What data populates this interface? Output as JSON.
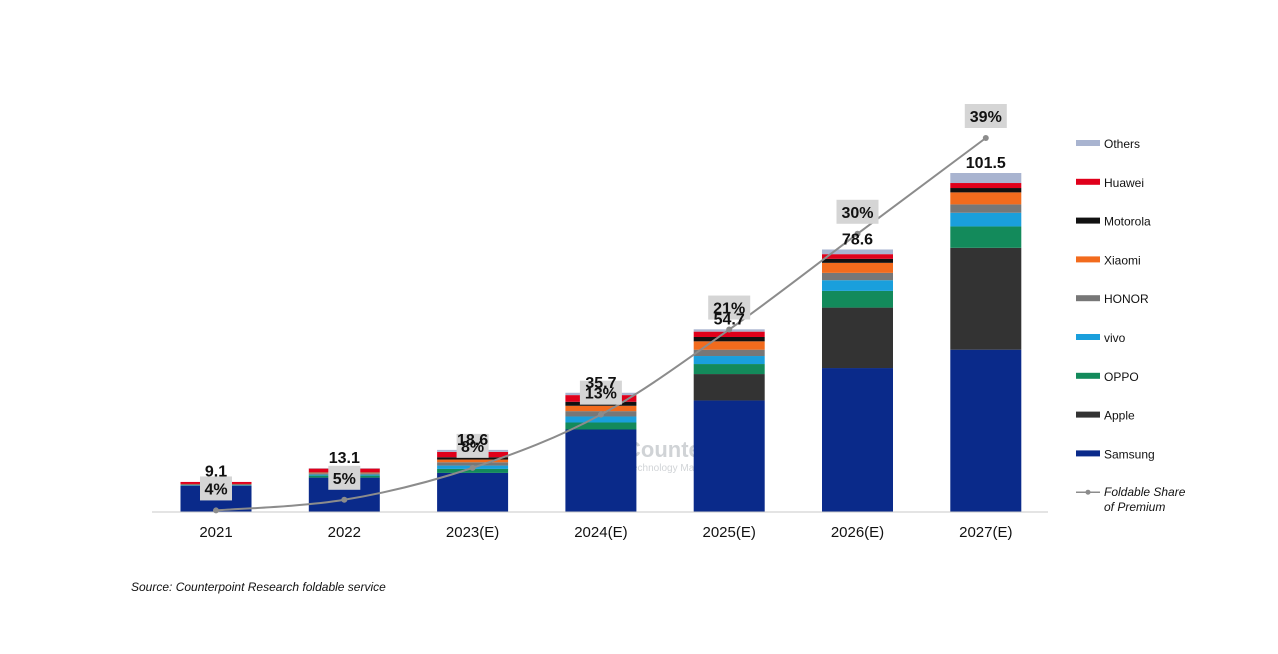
{
  "chart_data": {
    "type": "bar",
    "stacked": true,
    "categories": [
      "2021",
      "2022",
      "2023(E)",
      "2024(E)",
      "2025(E)",
      "2026(E)",
      "2027(E)"
    ],
    "totals": [
      9.1,
      13.1,
      18.6,
      35.7,
      54.7,
      78.6,
      101.5
    ],
    "totals_labels": [
      "9.1",
      "13.1",
      "18.6",
      "35.7",
      "54.7",
      "78.6",
      "101.5"
    ],
    "series": [
      {
        "name": "Samsung",
        "color": "#0a2a8a",
        "values": [
          7.9,
          10.3,
          11.7,
          24.7,
          33.4,
          43.1,
          48.6
        ]
      },
      {
        "name": "Apple",
        "color": "#333333",
        "values": [
          0,
          0,
          0,
          0,
          7.9,
          18.1,
          30.5
        ]
      },
      {
        "name": "OPPO",
        "color": "#138a5b",
        "values": [
          0.1,
          0.6,
          1.2,
          2.1,
          3.0,
          5.0,
          6.4
        ]
      },
      {
        "name": "vivo",
        "color": "#1a9fdc",
        "values": [
          0.1,
          0.3,
          1.0,
          1.8,
          2.4,
          3.2,
          4.1
        ]
      },
      {
        "name": "HONOR",
        "color": "#777777",
        "values": [
          0.1,
          0.4,
          1.0,
          1.6,
          1.9,
          2.2,
          2.5
        ]
      },
      {
        "name": "Xiaomi",
        "color": "#f26b1d",
        "values": [
          0.1,
          0.2,
          0.8,
          1.6,
          2.5,
          3.0,
          3.6
        ]
      },
      {
        "name": "Motorola",
        "color": "#111111",
        "values": [
          0.1,
          0.1,
          0.7,
          1.2,
          1.3,
          1.2,
          1.3
        ]
      },
      {
        "name": "Huawei",
        "color": "#e0001b",
        "values": [
          0.6,
          1.1,
          1.6,
          2.0,
          1.6,
          1.4,
          1.5
        ]
      },
      {
        "name": "Others",
        "color": "#a9b4d0",
        "values": [
          0.0,
          0.1,
          0.6,
          0.7,
          0.7,
          1.4,
          3.0
        ]
      }
    ],
    "line_series": {
      "name": "Foldable Share of Premium",
      "name_lines": [
        "Foldable Share",
        "of Premium"
      ],
      "color": "#8c8c8c",
      "values": [
        4,
        5,
        8,
        13,
        21,
        30,
        39
      ],
      "labels": [
        "4%",
        "5%",
        "8%",
        "13%",
        "21%",
        "30%",
        "39%"
      ]
    },
    "ylim_bars": [
      0,
      101.5
    ],
    "ylim_line": [
      0,
      39
    ],
    "legend_position": "right",
    "grid": false
  },
  "watermark": {
    "name": "Counterpoint",
    "tagline": "Technology Market Research"
  },
  "source_note": "Source: Counterpoint Research foldable service"
}
